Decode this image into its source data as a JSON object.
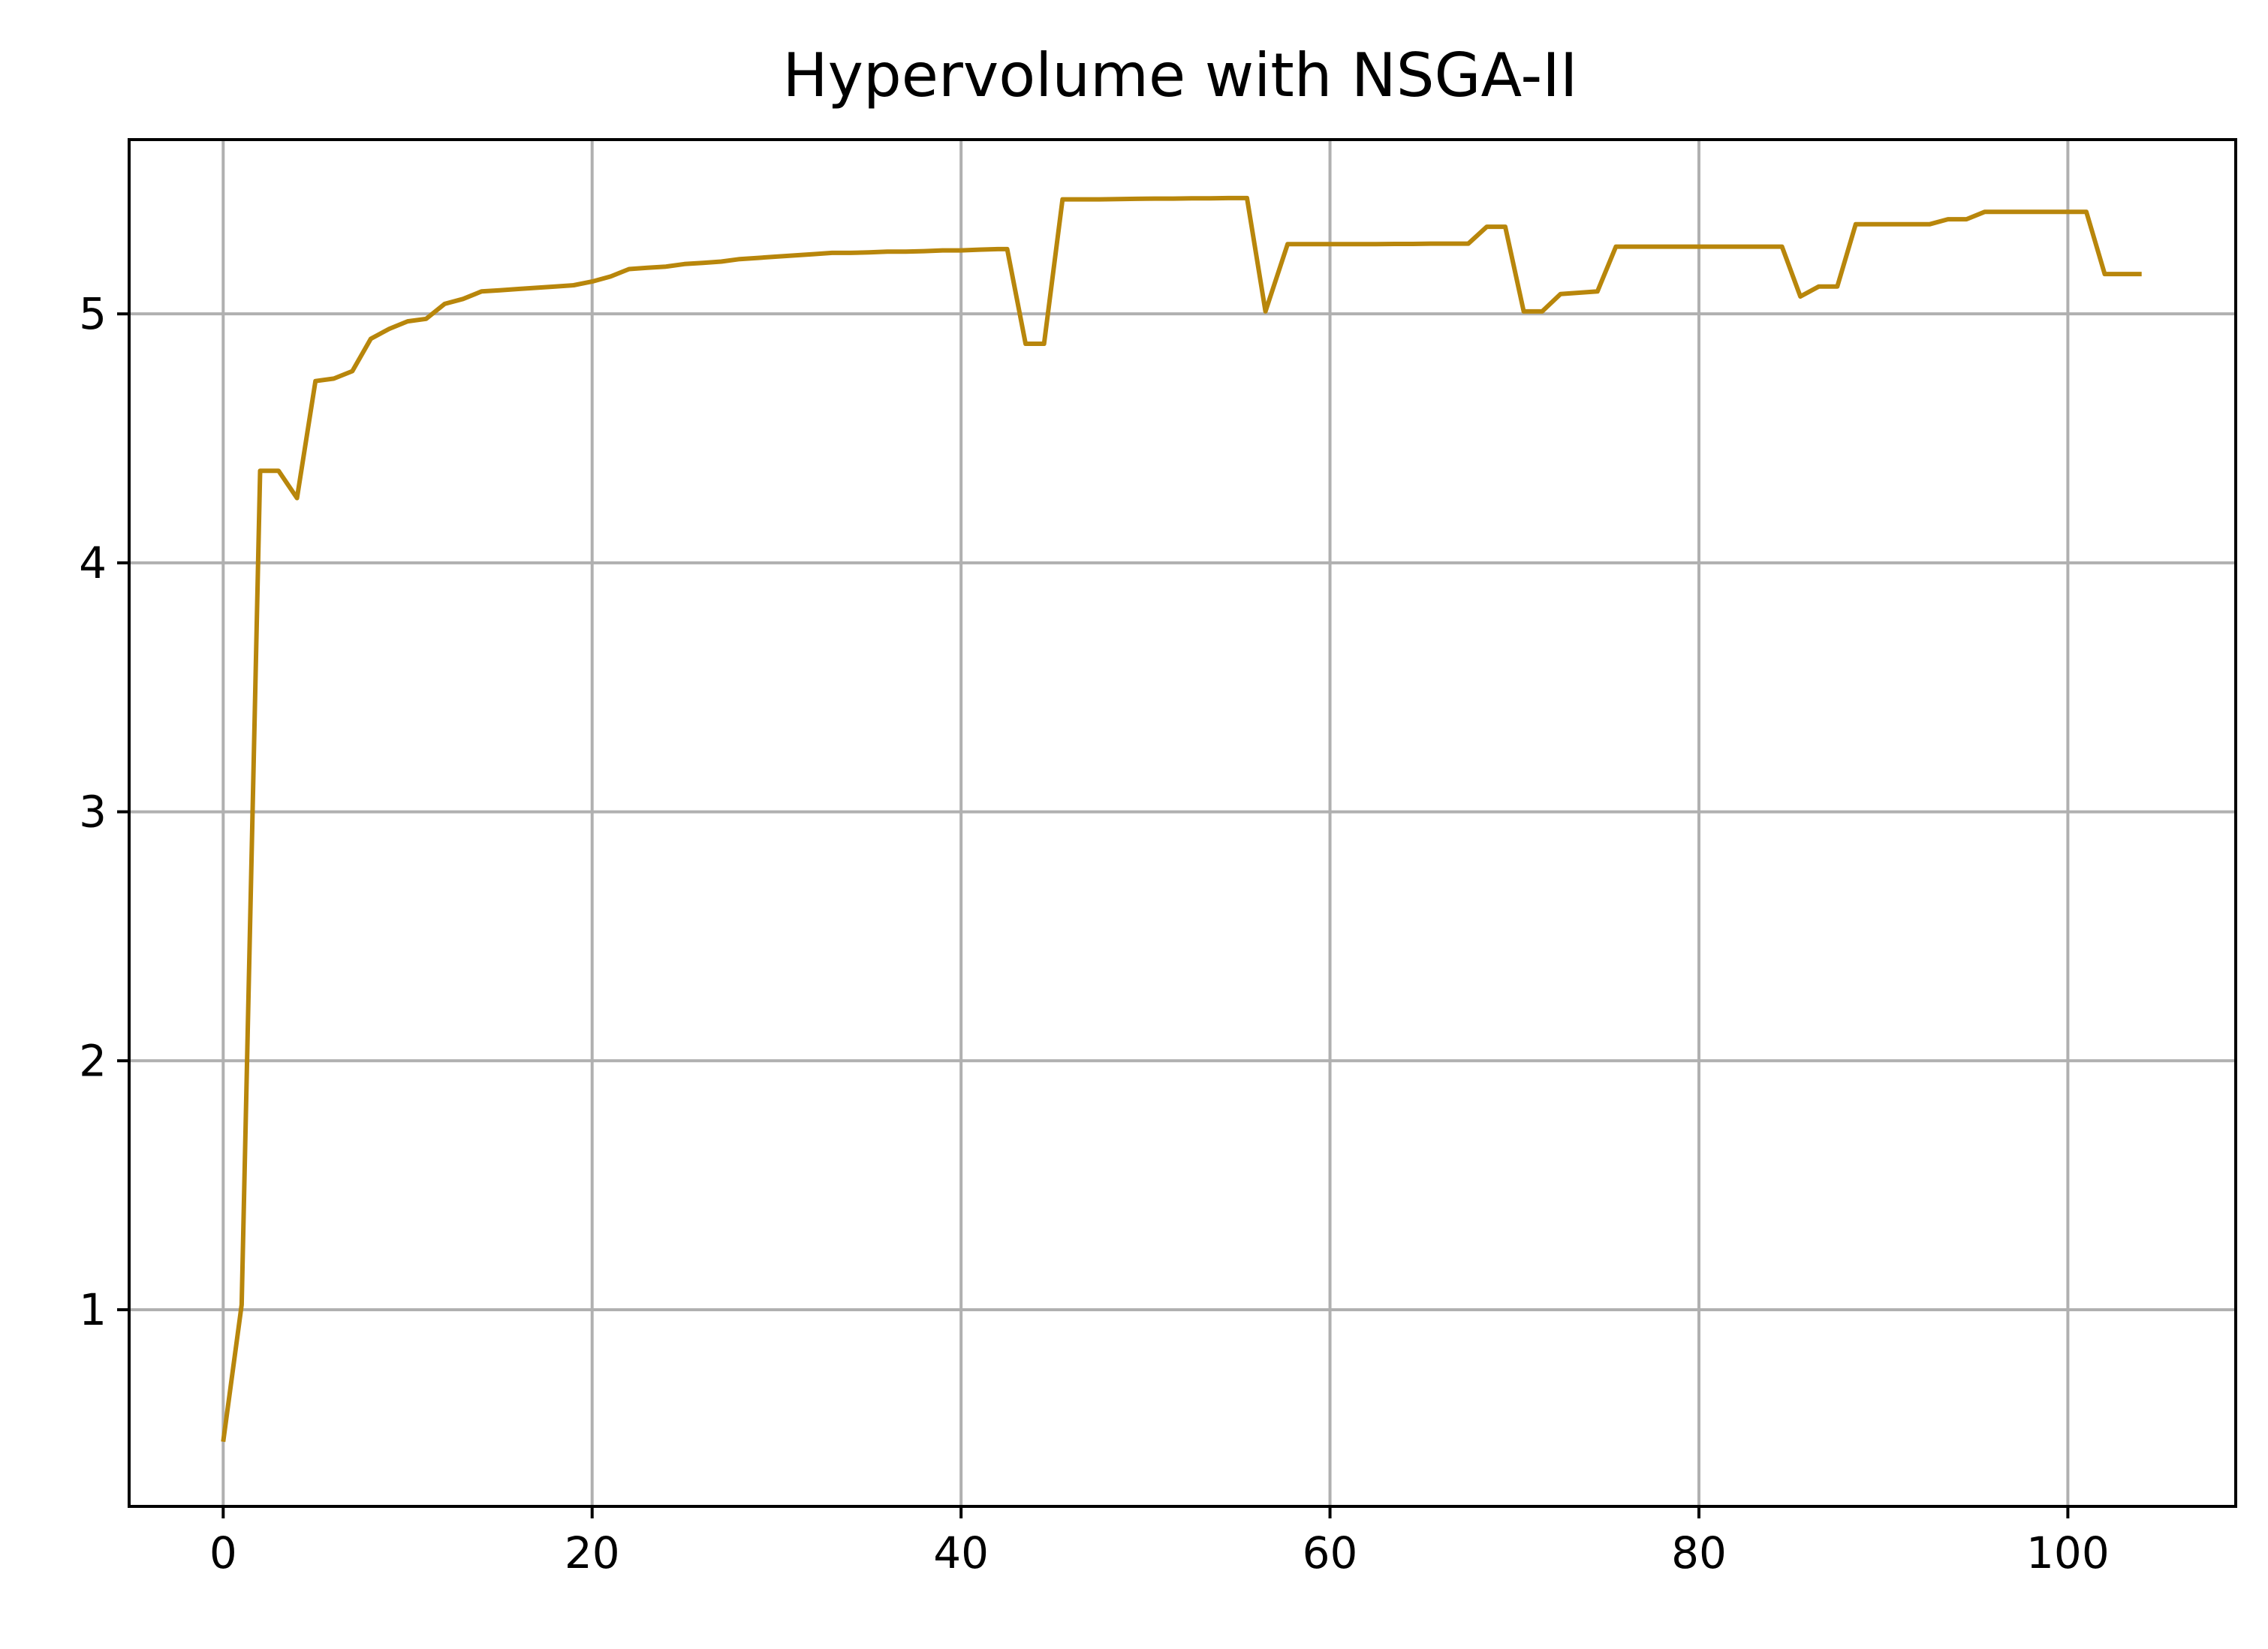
{
  "chart_data": {
    "type": "line",
    "title": "Hypervolume with NSGA-II",
    "xlabel": "",
    "ylabel": "",
    "xlim": [
      -5.1,
      109.1
    ],
    "ylim": [
      0.21,
      5.7
    ],
    "x_ticks": [
      0,
      20,
      40,
      60,
      80,
      100
    ],
    "y_ticks": [
      1,
      2,
      3,
      4,
      5
    ],
    "grid": true,
    "legend": "none",
    "series": [
      {
        "color": "#b8860b",
        "x": [
          0,
          1,
          2,
          3,
          4,
          5,
          6,
          7,
          8,
          9,
          10,
          11,
          12,
          13,
          14,
          15,
          16,
          17,
          18,
          19,
          20,
          21,
          22,
          23,
          24,
          25,
          26,
          27,
          28,
          29,
          30,
          31,
          32,
          33,
          34,
          35,
          36,
          37,
          38,
          39,
          40,
          41,
          42,
          42.5,
          43.5,
          44.5,
          45.5,
          46.5,
          47.5,
          48.5,
          49.5,
          50.5,
          51.5,
          52.5,
          53.5,
          54.5,
          55.5,
          56.5,
          57.7,
          58.5,
          59.5,
          60.5,
          61.5,
          62.5,
          63.5,
          64.5,
          65.5,
          66.5,
          67.5,
          68.5,
          69.5,
          70.5,
          71.5,
          72.5,
          73.5,
          74.5,
          75.5,
          76.5,
          77.5,
          78.5,
          79.5,
          80.5,
          81.5,
          82.5,
          83.5,
          84.5,
          85.5,
          86.5,
          87.5,
          88.5,
          89.5,
          90.5,
          91.5,
          92.5,
          93.5,
          94.5,
          95.5,
          96.5,
          97.5,
          98.5,
          99.5,
          100.5,
          101,
          102,
          103,
          104
        ],
        "values": [
          0.47,
          1.02,
          4.37,
          4.37,
          4.26,
          4.73,
          4.74,
          4.77,
          4.9,
          4.94,
          4.97,
          4.98,
          5.04,
          5.06,
          5.09,
          5.095,
          5.1,
          5.105,
          5.11,
          5.115,
          5.13,
          5.15,
          5.18,
          5.185,
          5.19,
          5.2,
          5.205,
          5.21,
          5.22,
          5.225,
          5.23,
          5.235,
          5.24,
          5.245,
          5.245,
          5.247,
          5.25,
          5.25,
          5.252,
          5.255,
          5.255,
          5.258,
          5.26,
          5.26,
          4.88,
          4.88,
          5.46,
          5.46,
          5.46,
          5.461,
          5.462,
          5.463,
          5.463,
          5.464,
          5.464,
          5.465,
          5.465,
          5.01,
          5.28,
          5.28,
          5.28,
          5.28,
          5.28,
          5.28,
          5.281,
          5.281,
          5.282,
          5.282,
          5.282,
          5.35,
          5.35,
          5.01,
          5.01,
          5.08,
          5.085,
          5.09,
          5.27,
          5.27,
          5.27,
          5.27,
          5.27,
          5.27,
          5.27,
          5.27,
          5.27,
          5.27,
          5.07,
          5.11,
          5.11,
          5.36,
          5.36,
          5.36,
          5.36,
          5.36,
          5.38,
          5.38,
          5.41,
          5.41,
          5.41,
          5.41,
          5.41,
          5.41,
          5.41,
          5.16,
          5.16,
          5.16
        ]
      }
    ]
  }
}
